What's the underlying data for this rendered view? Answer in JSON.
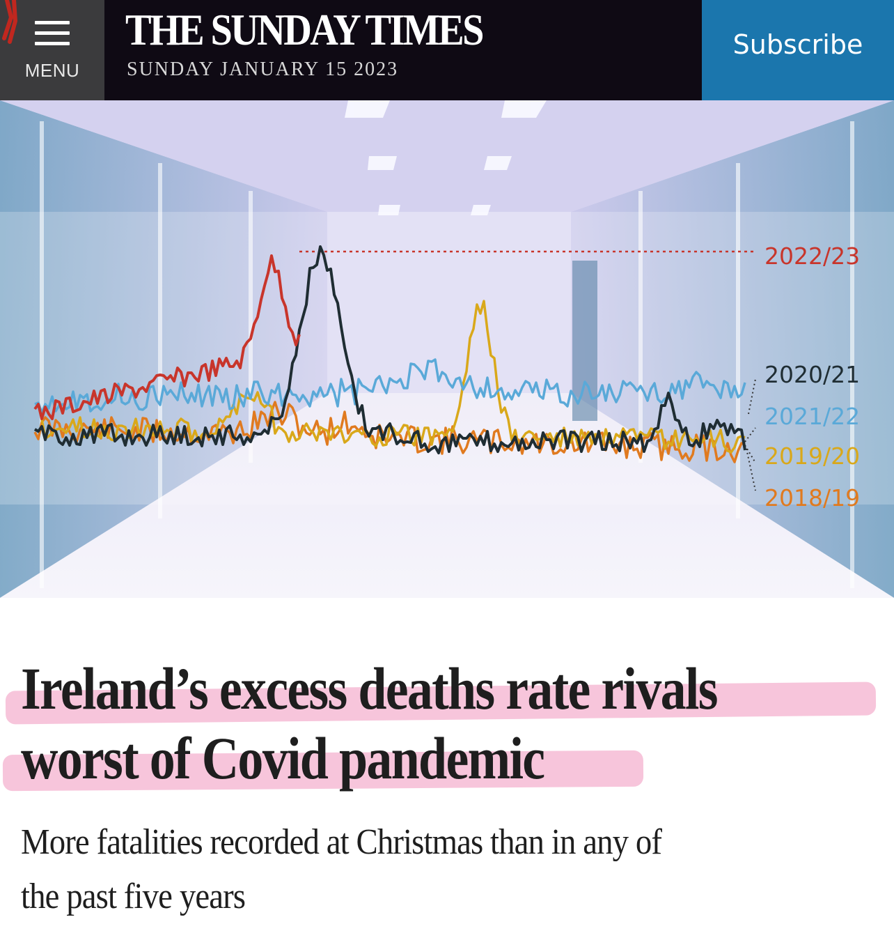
{
  "header": {
    "menu_label": "MENU",
    "masthead": "THE SUNDAY TIMES",
    "date": "SUNDAY JANUARY 15 2023",
    "subscribe_label": "Subscribe"
  },
  "hero_chart": {
    "series_labels": [
      "2022/23",
      "2020/21",
      "2021/22",
      "2019/20",
      "2018/19"
    ],
    "colors": {
      "2022/23": "#c8352b",
      "2020/21": "#1f2d33",
      "2021/22": "#5aa9d8",
      "2019/20": "#d9a81a",
      "2018/19": "#e07a1f"
    }
  },
  "article": {
    "headline_line1": "Ireland’s excess deaths rate rivals",
    "headline_line2": "worst of Covid pandemic",
    "standfirst_line1": "More fatalities recorded at Christmas than in any of",
    "standfirst_line2": "the past five years",
    "highlight_color": "#f096be"
  }
}
